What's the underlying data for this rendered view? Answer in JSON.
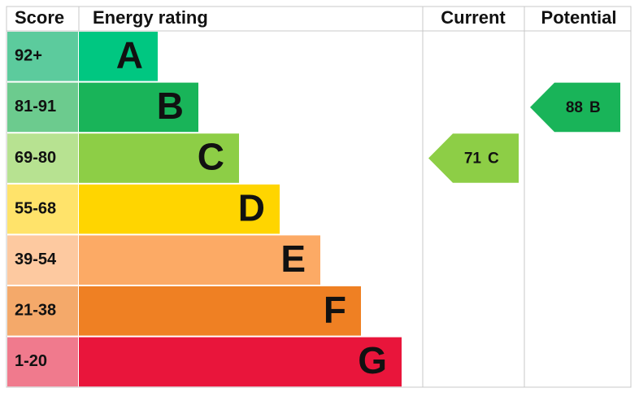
{
  "headers": {
    "score": "Score",
    "rating": "Energy rating",
    "current": "Current",
    "potential": "Potential"
  },
  "bands": [
    {
      "score": "92+",
      "letter": "A",
      "color": "#00c781",
      "score_color": "#5ccb9d"
    },
    {
      "score": "81-91",
      "letter": "B",
      "color": "#19b459",
      "score_color": "#6ccb8e"
    },
    {
      "score": "69-80",
      "letter": "C",
      "color": "#8dce46",
      "score_color": "#b7e291"
    },
    {
      "score": "55-68",
      "letter": "D",
      "color": "#ffd500",
      "score_color": "#ffe36a"
    },
    {
      "score": "39-54",
      "letter": "E",
      "color": "#fcaa65",
      "score_color": "#fdc9a0"
    },
    {
      "score": "21-38",
      "letter": "F",
      "color": "#ef8023",
      "score_color": "#f4a96a"
    },
    {
      "score": "1-20",
      "letter": "G",
      "color": "#e9153b",
      "score_color": "#f07a8d"
    }
  ],
  "current": {
    "value": 71,
    "letter": "C",
    "color": "#8dce46"
  },
  "potential": {
    "value": 88,
    "letter": "B",
    "color": "#19b459"
  }
}
